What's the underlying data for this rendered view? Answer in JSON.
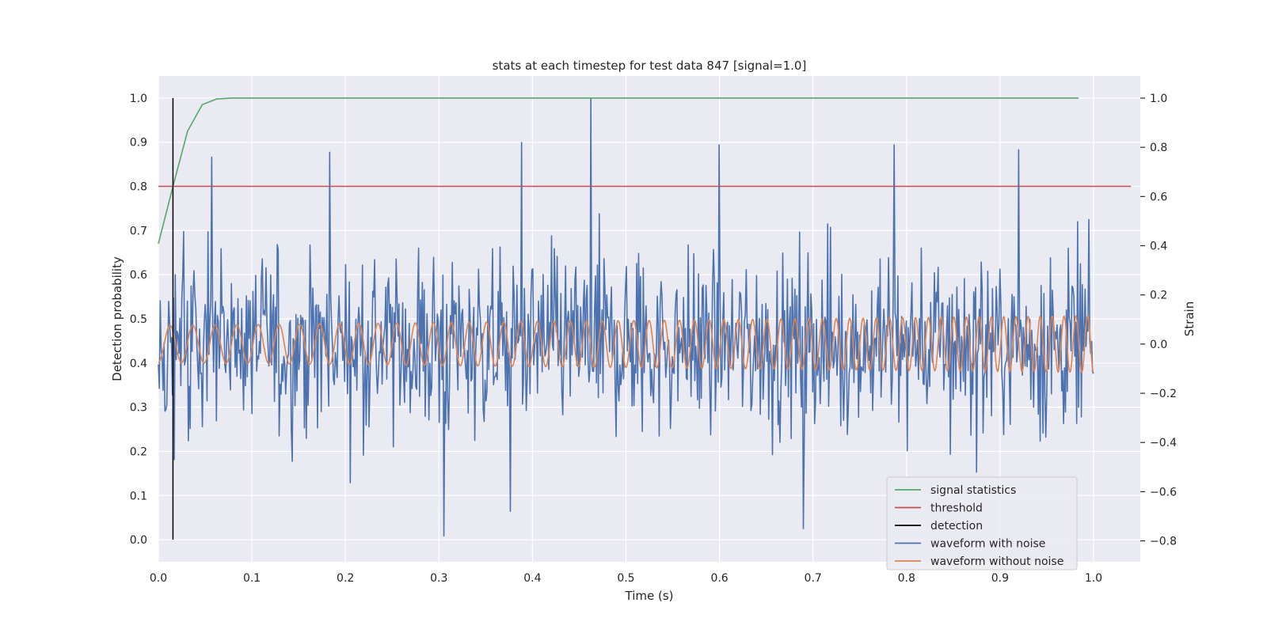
{
  "chart_data": {
    "type": "line",
    "title": "stats at each timestep for test data 847 [signal=1.0]",
    "xlabel": "Time (s)",
    "ylabel_left": "Detection probability",
    "ylabel_right": "Strain",
    "xlim": [
      0.0,
      1.05
    ],
    "ylim_left": [
      -0.05,
      1.05
    ],
    "ylim_right": [
      -0.885,
      1.09
    ],
    "xticks": [
      0.0,
      0.1,
      0.2,
      0.3,
      0.4,
      0.5,
      0.6,
      0.7,
      0.8,
      0.9,
      1.0
    ],
    "xtick_labels": [
      "0.0",
      "0.1",
      "0.2",
      "0.3",
      "0.4",
      "0.5",
      "0.6",
      "0.7",
      "0.8",
      "0.9",
      "1.0"
    ],
    "yticks_left": [
      0.0,
      0.1,
      0.2,
      0.3,
      0.4,
      0.5,
      0.6,
      0.7,
      0.8,
      0.9,
      1.0
    ],
    "ytick_labels_left": [
      "0.0",
      "0.1",
      "0.2",
      "0.3",
      "0.4",
      "0.5",
      "0.6",
      "0.7",
      "0.8",
      "0.9",
      "1.0"
    ],
    "yticks_right": [
      -0.8,
      -0.6,
      -0.4,
      -0.2,
      0.0,
      0.2,
      0.4,
      0.6,
      0.8,
      1.0
    ],
    "ytick_labels_right": [
      "−0.8",
      "−0.6",
      "−0.4",
      "−0.2",
      "0.0",
      "0.2",
      "0.4",
      "0.6",
      "0.8",
      "1.0"
    ],
    "grid": true,
    "legend_position": "lower-right",
    "series": [
      {
        "name": "signal statistics",
        "axis": "left",
        "color": "#55a868",
        "x": [
          0.0,
          0.0156,
          0.0312,
          0.0469,
          0.0625,
          0.0781,
          0.1,
          0.2,
          0.3,
          0.4,
          0.5,
          0.6,
          0.7,
          0.8,
          0.9,
          0.984
        ],
        "y": [
          0.67,
          0.8,
          0.925,
          0.985,
          0.998,
          1.0,
          1.0,
          1.0,
          1.0,
          1.0,
          1.0,
          1.0,
          1.0,
          1.0,
          1.0,
          1.0
        ]
      },
      {
        "name": "threshold",
        "axis": "left",
        "color": "#c44e52",
        "x": [
          0.0,
          1.04
        ],
        "y": [
          0.8,
          0.8
        ]
      },
      {
        "name": "detection",
        "axis": "left",
        "color": "#000000",
        "x": [
          0.0156,
          0.0156
        ],
        "y": [
          0.0,
          1.0
        ]
      },
      {
        "name": "waveform with noise",
        "axis": "right",
        "color": "#4c72b0",
        "note_samples": 1000,
        "x_range": [
          0.0,
          1.0
        ],
        "amplitude_range": [
          -0.8,
          1.0
        ],
        "extremes": [
          {
            "x": 0.462,
            "y": 1.0
          },
          {
            "x": 0.388,
            "y": 0.82
          },
          {
            "x": 0.6,
            "y": 0.81
          },
          {
            "x": 0.787,
            "y": 0.81
          },
          {
            "x": 0.92,
            "y": 0.79
          },
          {
            "x": 0.183,
            "y": 0.78
          },
          {
            "x": 0.057,
            "y": 0.76
          },
          {
            "x": 0.305,
            "y": -0.78
          },
          {
            "x": 0.69,
            "y": -0.75
          },
          {
            "x": 0.376,
            "y": -0.68
          }
        ]
      },
      {
        "name": "waveform without noise",
        "axis": "right",
        "color": "#dd8452",
        "x_range": [
          0.0,
          1.0
        ],
        "amplitude_start": 0.075,
        "amplitude_end": 0.115,
        "frequency_start_hz": 40,
        "frequency_end_hz": 80
      }
    ]
  }
}
